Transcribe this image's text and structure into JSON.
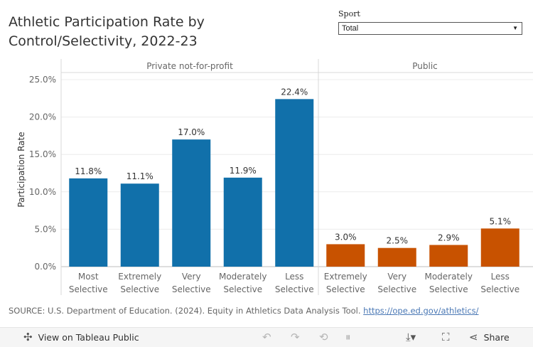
{
  "title": "Athletic Participation Rate by Control/Selectivity, 2022-23",
  "filter": {
    "label": "Sport",
    "value": "Total"
  },
  "chart_data": {
    "type": "bar",
    "ylabel": "Participation Rate",
    "ylim": [
      0,
      26
    ],
    "yticks": [
      "0.0%",
      "5.0%",
      "10.0%",
      "15.0%",
      "20.0%",
      "25.0%"
    ],
    "ytick_values": [
      0,
      5,
      10,
      15,
      20,
      25
    ],
    "panels": [
      {
        "name": "Private not-for-profit",
        "color": "#1170aa",
        "categories": [
          [
            "Most",
            "Selective"
          ],
          [
            "Extremely",
            "Selective"
          ],
          [
            "Very",
            "Selective"
          ],
          [
            "Moderately",
            "Selective"
          ],
          [
            "Less",
            "Selective"
          ]
        ],
        "values": [
          11.8,
          11.1,
          17.0,
          11.9,
          22.4
        ],
        "labels": [
          "11.8%",
          "11.1%",
          "17.0%",
          "11.9%",
          "22.4%"
        ]
      },
      {
        "name": "Public",
        "color": "#c85200",
        "categories": [
          [
            "Extremely",
            "Selective"
          ],
          [
            "Very",
            "Selective"
          ],
          [
            "Moderately",
            "Selective"
          ],
          [
            "Less",
            "Selective"
          ]
        ],
        "values": [
          3.0,
          2.5,
          2.9,
          5.1
        ],
        "labels": [
          "3.0%",
          "2.5%",
          "2.9%",
          "5.1%"
        ]
      }
    ]
  },
  "source": {
    "text": "SOURCE: U.S. Department of Education. (2024). Equity in Athletics Data Analysis Tool. ",
    "link": "https://ope.ed.gov/athletics/"
  },
  "toolbar": {
    "view_label": "View on Tableau Public",
    "share_label": "Share"
  }
}
